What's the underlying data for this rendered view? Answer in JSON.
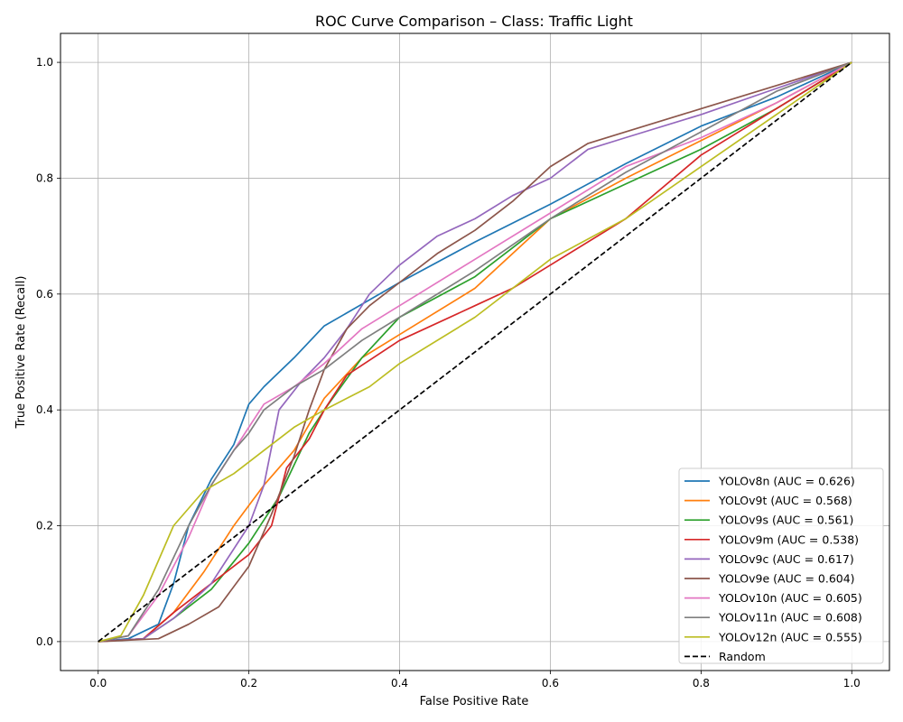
{
  "chart_data": {
    "type": "line",
    "title": "ROC Curve Comparison – Class: Traffic Light",
    "xlabel": "False Positive Rate",
    "ylabel": "True Positive Rate (Recall)",
    "xlim": [
      -0.05,
      1.05
    ],
    "ylim": [
      -0.05,
      1.05
    ],
    "xticks": [
      0.0,
      0.2,
      0.4,
      0.6,
      0.8,
      1.0
    ],
    "yticks": [
      0.0,
      0.2,
      0.4,
      0.6,
      0.8,
      1.0
    ],
    "xtick_labels": [
      "0.0",
      "0.2",
      "0.4",
      "0.6",
      "0.8",
      "1.0"
    ],
    "ytick_labels": [
      "0.0",
      "0.2",
      "0.4",
      "0.6",
      "0.8",
      "1.0"
    ],
    "grid": true,
    "legend_position": "lower right",
    "series": [
      {
        "name": "YOLOv8n (AUC = 0.626)",
        "color": "#1f77b4",
        "dashed": false,
        "x": [
          0,
          0.04,
          0.08,
          0.1,
          0.12,
          0.15,
          0.18,
          0.2,
          0.22,
          0.26,
          0.3,
          0.34,
          0.4,
          0.5,
          0.6,
          0.7,
          0.8,
          0.9,
          1.0
        ],
        "y": [
          0,
          0.005,
          0.03,
          0.1,
          0.2,
          0.28,
          0.34,
          0.41,
          0.44,
          0.49,
          0.545,
          0.575,
          0.62,
          0.69,
          0.755,
          0.825,
          0.89,
          0.94,
          1.0
        ]
      },
      {
        "name": "YOLOv9t (AUC = 0.568)",
        "color": "#ff7f0e",
        "dashed": false,
        "x": [
          0,
          0.06,
          0.1,
          0.14,
          0.18,
          0.22,
          0.26,
          0.3,
          0.35,
          0.4,
          0.5,
          0.6,
          0.7,
          0.8,
          0.9,
          1.0
        ],
        "y": [
          0,
          0.005,
          0.05,
          0.12,
          0.2,
          0.27,
          0.33,
          0.42,
          0.49,
          0.53,
          0.61,
          0.73,
          0.8,
          0.865,
          0.93,
          1.0
        ]
      },
      {
        "name": "YOLOv9s (AUC = 0.561)",
        "color": "#2ca02c",
        "dashed": false,
        "x": [
          0,
          0.06,
          0.1,
          0.15,
          0.2,
          0.24,
          0.28,
          0.3,
          0.35,
          0.4,
          0.5,
          0.6,
          0.7,
          0.8,
          0.9,
          1.0
        ],
        "y": [
          0,
          0.005,
          0.04,
          0.09,
          0.17,
          0.25,
          0.36,
          0.4,
          0.49,
          0.56,
          0.63,
          0.73,
          0.79,
          0.85,
          0.92,
          1.0
        ]
      },
      {
        "name": "YOLOv9m (AUC = 0.538)",
        "color": "#d62728",
        "dashed": false,
        "x": [
          0,
          0.06,
          0.1,
          0.15,
          0.2,
          0.23,
          0.25,
          0.28,
          0.3,
          0.33,
          0.4,
          0.5,
          0.55,
          0.6,
          0.7,
          0.8,
          0.9,
          1.0
        ],
        "y": [
          0,
          0.005,
          0.05,
          0.1,
          0.15,
          0.2,
          0.3,
          0.35,
          0.4,
          0.46,
          0.52,
          0.58,
          0.61,
          0.65,
          0.73,
          0.84,
          0.92,
          1.0
        ]
      },
      {
        "name": "YOLOv9c (AUC = 0.617)",
        "color": "#9467bd",
        "dashed": false,
        "x": [
          0,
          0.06,
          0.1,
          0.15,
          0.2,
          0.22,
          0.24,
          0.27,
          0.3,
          0.33,
          0.36,
          0.4,
          0.45,
          0.5,
          0.55,
          0.6,
          0.65,
          0.7,
          0.8,
          0.9,
          1.0
        ],
        "y": [
          0,
          0.005,
          0.04,
          0.1,
          0.2,
          0.27,
          0.4,
          0.45,
          0.49,
          0.54,
          0.6,
          0.65,
          0.7,
          0.73,
          0.77,
          0.8,
          0.85,
          0.87,
          0.91,
          0.955,
          1.0
        ]
      },
      {
        "name": "YOLOv9e (AUC = 0.604)",
        "color": "#8c564b",
        "dashed": false,
        "x": [
          0,
          0.08,
          0.12,
          0.16,
          0.2,
          0.23,
          0.26,
          0.28,
          0.3,
          0.33,
          0.36,
          0.4,
          0.45,
          0.5,
          0.55,
          0.6,
          0.65,
          0.7,
          0.8,
          0.9,
          1.0
        ],
        "y": [
          0,
          0.005,
          0.03,
          0.06,
          0.13,
          0.22,
          0.32,
          0.4,
          0.47,
          0.54,
          0.58,
          0.62,
          0.67,
          0.71,
          0.76,
          0.82,
          0.86,
          0.88,
          0.92,
          0.96,
          1.0
        ]
      },
      {
        "name": "YOLOv10n (AUC = 0.605)",
        "color": "#e377c2",
        "dashed": false,
        "x": [
          0,
          0.04,
          0.08,
          0.12,
          0.15,
          0.18,
          0.2,
          0.22,
          0.26,
          0.3,
          0.35,
          0.4,
          0.5,
          0.6,
          0.7,
          0.8,
          0.9,
          1.0
        ],
        "y": [
          0,
          0.01,
          0.08,
          0.18,
          0.27,
          0.33,
          0.37,
          0.41,
          0.44,
          0.48,
          0.54,
          0.58,
          0.66,
          0.74,
          0.82,
          0.87,
          0.93,
          1.0
        ]
      },
      {
        "name": "YOLOv11n (AUC = 0.608)",
        "color": "#7f7f7f",
        "dashed": false,
        "x": [
          0,
          0.04,
          0.08,
          0.12,
          0.15,
          0.18,
          0.2,
          0.22,
          0.26,
          0.3,
          0.35,
          0.4,
          0.5,
          0.6,
          0.7,
          0.8,
          0.9,
          1.0
        ],
        "y": [
          0,
          0.01,
          0.09,
          0.2,
          0.27,
          0.33,
          0.36,
          0.4,
          0.44,
          0.47,
          0.52,
          0.56,
          0.64,
          0.73,
          0.81,
          0.88,
          0.95,
          1.0
        ]
      },
      {
        "name": "YOLOv12n (AUC = 0.555)",
        "color": "#bcbd22",
        "dashed": false,
        "x": [
          0,
          0.03,
          0.06,
          0.1,
          0.14,
          0.18,
          0.22,
          0.26,
          0.3,
          0.36,
          0.4,
          0.5,
          0.6,
          0.7,
          0.8,
          0.9,
          1.0
        ],
        "y": [
          0,
          0.01,
          0.08,
          0.2,
          0.26,
          0.29,
          0.33,
          0.37,
          0.4,
          0.44,
          0.48,
          0.56,
          0.66,
          0.73,
          0.82,
          0.91,
          1.0
        ]
      },
      {
        "name": "Random",
        "color": "#000000",
        "dashed": true,
        "x": [
          0,
          1
        ],
        "y": [
          0,
          1
        ]
      }
    ]
  }
}
